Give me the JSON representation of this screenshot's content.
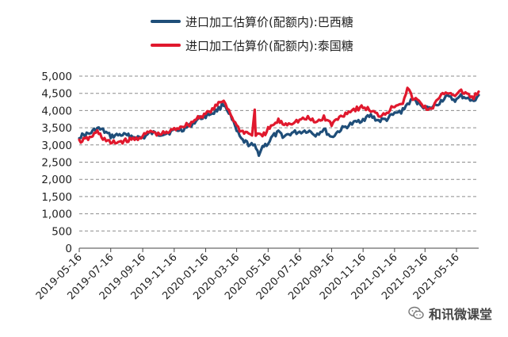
{
  "colors": {
    "brazil": "#1F4E79",
    "thailand": "#E0182D",
    "grid": "#8C8C8C",
    "axis": "#444444"
  },
  "legend": {
    "items": [
      {
        "label": "进口加工估算价(配额内):巴西糖",
        "color": "#1F4E79"
      },
      {
        "label": "进口加工估算价(配额内):泰国糖",
        "color": "#E0182D"
      }
    ]
  },
  "watermark": {
    "text": "和讯微课堂",
    "icon": "wechat-icon"
  },
  "chart_data": {
    "type": "line",
    "x_ticks": [
      "2019-05-16",
      "2019-07-16",
      "2019-09-16",
      "2019-11-16",
      "2020-01-16",
      "2020-03-16",
      "2020-05-16",
      "2020-07-16",
      "2020-09-16",
      "2020-11-16",
      "2021-01-16",
      "2021-03-16",
      "2021-05-16"
    ],
    "y_ticks": [
      "0",
      "500",
      "1,000",
      "1,500",
      "2,000",
      "2,500",
      "3,000",
      "3,500",
      "4,000",
      "4,500",
      "5,000"
    ],
    "ylim": [
      0,
      5000
    ],
    "xlim": [
      "2019-05-16",
      "2021-06-28"
    ],
    "grid": true,
    "legend_position": "top",
    "series": [
      {
        "name": "进口加工估算价(配额内):巴西糖",
        "color": "#1F4E79",
        "points": [
          [
            "2019-05-16",
            3250
          ],
          [
            "2019-06-05",
            3330
          ],
          [
            "2019-06-20",
            3480
          ],
          [
            "2019-07-01",
            3420
          ],
          [
            "2019-07-16",
            3250
          ],
          [
            "2019-08-05",
            3300
          ],
          [
            "2019-08-25",
            3250
          ],
          [
            "2019-09-16",
            3200
          ],
          [
            "2019-10-01",
            3350
          ],
          [
            "2019-10-16",
            3320
          ],
          [
            "2019-11-01",
            3340
          ],
          [
            "2019-11-16",
            3420
          ],
          [
            "2019-12-01",
            3450
          ],
          [
            "2019-12-16",
            3550
          ],
          [
            "2020-01-01",
            3750
          ],
          [
            "2020-01-16",
            3850
          ],
          [
            "2020-02-01",
            3950
          ],
          [
            "2020-02-10",
            4050
          ],
          [
            "2020-02-20",
            4200
          ],
          [
            "2020-03-01",
            3950
          ],
          [
            "2020-03-16",
            3400
          ],
          [
            "2020-03-25",
            3150
          ],
          [
            "2020-04-05",
            3050
          ],
          [
            "2020-04-20",
            2950
          ],
          [
            "2020-04-28",
            2750
          ],
          [
            "2020-05-05",
            2950
          ],
          [
            "2020-05-16",
            3050
          ],
          [
            "2020-05-25",
            3250
          ],
          [
            "2020-06-05",
            3350
          ],
          [
            "2020-06-16",
            3250
          ],
          [
            "2020-07-01",
            3350
          ],
          [
            "2020-07-16",
            3380
          ],
          [
            "2020-08-01",
            3420
          ],
          [
            "2020-08-16",
            3300
          ],
          [
            "2020-09-01",
            3450
          ],
          [
            "2020-09-16",
            3220
          ],
          [
            "2020-10-01",
            3420
          ],
          [
            "2020-10-16",
            3550
          ],
          [
            "2020-11-01",
            3650
          ],
          [
            "2020-11-16",
            3750
          ],
          [
            "2020-12-01",
            3850
          ],
          [
            "2020-12-16",
            3700
          ],
          [
            "2021-01-01",
            3750
          ],
          [
            "2021-01-16",
            3900
          ],
          [
            "2021-02-01",
            4000
          ],
          [
            "2021-02-10",
            4200
          ],
          [
            "2021-02-20",
            4300
          ],
          [
            "2021-03-01",
            4250
          ],
          [
            "2021-03-16",
            4100
          ],
          [
            "2021-03-25",
            4050
          ],
          [
            "2021-04-10",
            4200
          ],
          [
            "2021-04-25",
            4400
          ],
          [
            "2021-05-05",
            4350
          ],
          [
            "2021-05-16",
            4300
          ],
          [
            "2021-05-25",
            4420
          ],
          [
            "2021-06-05",
            4380
          ],
          [
            "2021-06-15",
            4250
          ],
          [
            "2021-06-28",
            4450
          ]
        ]
      },
      {
        "name": "进口加工估算价(配额内):泰国糖",
        "color": "#E0182D",
        "points": [
          [
            "2019-05-16",
            3100
          ],
          [
            "2019-06-05",
            3200
          ],
          [
            "2019-06-20",
            3380
          ],
          [
            "2019-07-01",
            3200
          ],
          [
            "2019-07-16",
            3050
          ],
          [
            "2019-08-05",
            3100
          ],
          [
            "2019-08-25",
            3150
          ],
          [
            "2019-09-16",
            3250
          ],
          [
            "2019-10-01",
            3400
          ],
          [
            "2019-10-16",
            3300
          ],
          [
            "2019-11-01",
            3350
          ],
          [
            "2019-11-16",
            3450
          ],
          [
            "2019-12-01",
            3550
          ],
          [
            "2019-12-16",
            3600
          ],
          [
            "2020-01-01",
            3800
          ],
          [
            "2020-01-16",
            3900
          ],
          [
            "2020-02-01",
            4050
          ],
          [
            "2020-02-10",
            4200
          ],
          [
            "2020-02-20",
            4300
          ],
          [
            "2020-03-01",
            4000
          ],
          [
            "2020-03-16",
            3550
          ],
          [
            "2020-03-25",
            3400
          ],
          [
            "2020-04-05",
            3350
          ],
          [
            "2020-04-15",
            3300
          ],
          [
            "2020-04-20",
            4000
          ],
          [
            "2020-04-22",
            3300
          ],
          [
            "2020-05-05",
            3250
          ],
          [
            "2020-05-16",
            3450
          ],
          [
            "2020-06-05",
            3700
          ],
          [
            "2020-06-16",
            3600
          ],
          [
            "2020-07-01",
            3650
          ],
          [
            "2020-07-16",
            3720
          ],
          [
            "2020-08-01",
            3780
          ],
          [
            "2020-08-16",
            3650
          ],
          [
            "2020-09-01",
            3800
          ],
          [
            "2020-09-16",
            3600
          ],
          [
            "2020-10-01",
            3800
          ],
          [
            "2020-10-16",
            3950
          ],
          [
            "2020-11-01",
            4050
          ],
          [
            "2020-11-16",
            4100
          ],
          [
            "2020-12-01",
            4000
          ],
          [
            "2020-12-16",
            3850
          ],
          [
            "2021-01-01",
            3950
          ],
          [
            "2021-01-16",
            4150
          ],
          [
            "2021-02-01",
            4250
          ],
          [
            "2021-02-10",
            4650
          ],
          [
            "2021-02-20",
            4350
          ],
          [
            "2021-03-01",
            4300
          ],
          [
            "2021-03-16",
            4100
          ],
          [
            "2021-03-25",
            4000
          ],
          [
            "2021-04-10",
            4300
          ],
          [
            "2021-04-25",
            4550
          ],
          [
            "2021-05-05",
            4500
          ],
          [
            "2021-05-16",
            4450
          ],
          [
            "2021-05-25",
            4550
          ],
          [
            "2021-06-05",
            4500
          ],
          [
            "2021-06-15",
            4350
          ],
          [
            "2021-06-28",
            4550
          ]
        ]
      }
    ]
  }
}
